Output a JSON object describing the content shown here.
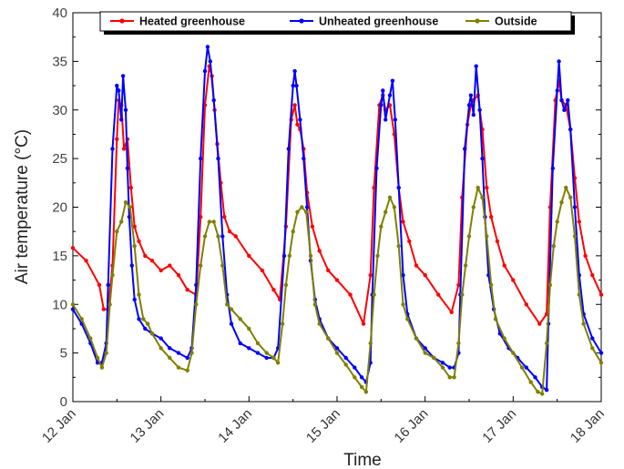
{
  "chart_data": {
    "type": "line",
    "xlabel": "Time",
    "ylabel": "Air temperature (°C)",
    "ylim": [
      0,
      40
    ],
    "yticks": [
      0,
      5,
      10,
      15,
      20,
      25,
      30,
      35,
      40
    ],
    "xlim": [
      0,
      6
    ],
    "xtick_values": [
      0,
      1,
      2,
      3,
      4,
      5,
      6
    ],
    "xtick_labels": [
      "12 Jan",
      "13 Jan",
      "14 Jan",
      "15 Jan",
      "16 Jan",
      "17 Jan",
      "18 Jan"
    ],
    "x_unit": "days since 12 Jan 00:00",
    "legend_position": "top",
    "series": [
      {
        "name": "Heated greenhouse",
        "color": "#ff0000",
        "x": [
          0,
          0.15,
          0.3,
          0.35,
          0.4,
          0.45,
          0.5,
          0.52,
          0.55,
          0.58,
          0.62,
          0.66,
          0.7,
          0.75,
          0.82,
          0.9,
          1.0,
          1.1,
          1.2,
          1.3,
          1.4,
          1.45,
          1.5,
          1.55,
          1.58,
          1.61,
          1.64,
          1.68,
          1.72,
          1.78,
          1.85,
          2.0,
          2.15,
          2.28,
          2.35,
          2.42,
          2.48,
          2.52,
          2.55,
          2.58,
          2.62,
          2.66,
          2.72,
          2.8,
          2.9,
          3.0,
          3.15,
          3.3,
          3.38,
          3.42,
          3.48,
          3.52,
          3.55,
          3.6,
          3.65,
          3.7,
          3.75,
          3.82,
          3.9,
          4.0,
          4.15,
          4.3,
          4.38,
          4.42,
          4.48,
          4.52,
          4.55,
          4.6,
          4.65,
          4.7,
          4.75,
          4.82,
          4.9,
          5.0,
          5.15,
          5.3,
          5.38,
          5.42,
          5.48,
          5.52,
          5.55,
          5.6,
          5.65,
          5.7,
          5.75,
          5.82,
          5.9,
          6.0
        ],
        "values": [
          15.8,
          14.5,
          12.0,
          9.5,
          9.5,
          14.0,
          27.0,
          31.0,
          30.5,
          26.0,
          27.0,
          22.0,
          18.0,
          16.5,
          15.0,
          14.5,
          13.5,
          14.0,
          13.0,
          11.5,
          11.0,
          19.0,
          30.5,
          34.5,
          33.5,
          30.0,
          26.5,
          22.5,
          19.0,
          17.5,
          17.0,
          15.0,
          13.5,
          11.5,
          10.5,
          18.0,
          29.0,
          30.5,
          28.5,
          28.0,
          26.0,
          21.5,
          18.0,
          15.5,
          13.5,
          12.5,
          11.0,
          8.0,
          13.0,
          22.0,
          30.5,
          31.5,
          30.0,
          30.5,
          27.5,
          22.0,
          18.5,
          16.5,
          14.0,
          13.0,
          11.0,
          9.2,
          12.0,
          21.0,
          28.5,
          30.5,
          31.0,
          31.5,
          28.0,
          22.0,
          19.0,
          16.5,
          14.0,
          12.5,
          10.0,
          8.0,
          9.0,
          20.0,
          31.0,
          33.0,
          31.0,
          30.5,
          28.0,
          23.0,
          18.5,
          15.0,
          13.0,
          11.0
        ]
      },
      {
        "name": "Unheated greenhouse",
        "color": "#0000ff",
        "x": [
          0,
          0.1,
          0.2,
          0.28,
          0.33,
          0.38,
          0.4,
          0.45,
          0.5,
          0.52,
          0.55,
          0.57,
          0.6,
          0.62,
          0.64,
          0.67,
          0.7,
          0.75,
          0.82,
          0.9,
          1.0,
          1.1,
          1.2,
          1.3,
          1.35,
          1.4,
          1.45,
          1.5,
          1.53,
          1.56,
          1.6,
          1.65,
          1.7,
          1.75,
          1.8,
          1.9,
          2.0,
          2.1,
          2.2,
          2.28,
          2.33,
          2.4,
          2.45,
          2.5,
          2.52,
          2.54,
          2.58,
          2.62,
          2.66,
          2.7,
          2.75,
          2.8,
          2.9,
          3.0,
          3.1,
          3.2,
          3.28,
          3.33,
          3.38,
          3.4,
          3.45,
          3.5,
          3.52,
          3.55,
          3.6,
          3.63,
          3.66,
          3.7,
          3.75,
          3.8,
          3.9,
          4.0,
          4.1,
          4.2,
          4.28,
          4.33,
          4.38,
          4.4,
          4.45,
          4.5,
          4.52,
          4.55,
          4.58,
          4.62,
          4.65,
          4.68,
          4.72,
          4.78,
          4.85,
          4.95,
          5.05,
          5.15,
          5.25,
          5.33,
          5.38,
          5.4,
          5.45,
          5.5,
          5.52,
          5.55,
          5.58,
          5.62,
          5.65,
          5.7,
          5.75,
          5.8,
          5.9,
          6.0
        ],
        "values": [
          9.5,
          8.0,
          6.0,
          4.0,
          4.0,
          6.0,
          12.0,
          26.0,
          32.5,
          32.0,
          29.0,
          33.5,
          30.0,
          24.0,
          19.0,
          14.0,
          10.5,
          8.5,
          7.5,
          7.0,
          6.5,
          5.5,
          5.0,
          4.5,
          5.5,
          12.0,
          25.0,
          34.0,
          36.5,
          35.0,
          31.0,
          25.0,
          17.0,
          11.0,
          8.0,
          6.0,
          5.5,
          5.0,
          4.5,
          4.5,
          5.5,
          15.0,
          26.0,
          32.5,
          34.0,
          32.5,
          29.0,
          25.0,
          20.0,
          14.5,
          10.5,
          8.5,
          6.5,
          5.5,
          4.5,
          3.5,
          2.5,
          2.0,
          4.0,
          11.0,
          24.0,
          30.5,
          32.0,
          29.0,
          31.5,
          33.0,
          29.0,
          22.0,
          13.0,
          9.0,
          6.5,
          5.5,
          4.5,
          4.0,
          3.5,
          3.5,
          5.0,
          11.0,
          26.0,
          30.5,
          31.5,
          29.5,
          34.5,
          30.0,
          25.0,
          19.0,
          13.0,
          9.5,
          7.0,
          5.5,
          4.5,
          3.5,
          2.5,
          1.5,
          1.2,
          8.0,
          24.0,
          32.0,
          35.0,
          31.0,
          30.0,
          31.0,
          28.0,
          20.0,
          13.0,
          9.0,
          6.5,
          5.0
        ]
      },
      {
        "name": "Outside",
        "color": "#808000",
        "x": [
          0,
          0.1,
          0.2,
          0.28,
          0.33,
          0.38,
          0.42,
          0.45,
          0.5,
          0.55,
          0.6,
          0.65,
          0.7,
          0.75,
          0.8,
          0.85,
          0.9,
          1.0,
          1.1,
          1.2,
          1.3,
          1.35,
          1.4,
          1.45,
          1.5,
          1.55,
          1.6,
          1.65,
          1.7,
          1.75,
          1.8,
          1.9,
          2.0,
          2.1,
          2.2,
          2.28,
          2.33,
          2.38,
          2.42,
          2.46,
          2.5,
          2.55,
          2.6,
          2.65,
          2.7,
          2.75,
          2.8,
          2.9,
          3.0,
          3.1,
          3.2,
          3.28,
          3.33,
          3.38,
          3.42,
          3.46,
          3.5,
          3.55,
          3.6,
          3.65,
          3.7,
          3.75,
          3.8,
          3.9,
          4.0,
          4.1,
          4.2,
          4.28,
          4.33,
          4.38,
          4.42,
          4.46,
          4.5,
          4.55,
          4.6,
          4.65,
          4.7,
          4.75,
          4.8,
          4.9,
          5.0,
          5.1,
          5.2,
          5.28,
          5.33,
          5.38,
          5.42,
          5.46,
          5.5,
          5.55,
          5.6,
          5.65,
          5.7,
          5.75,
          5.8,
          5.9,
          6.0
        ],
        "values": [
          10.0,
          8.5,
          6.5,
          4.5,
          3.5,
          5.0,
          10.0,
          13.0,
          17.5,
          18.5,
          20.5,
          20.0,
          16.0,
          11.0,
          8.5,
          8.0,
          7.0,
          5.5,
          4.5,
          3.5,
          3.2,
          5.0,
          10.0,
          14.0,
          17.0,
          18.5,
          18.5,
          17.0,
          14.0,
          10.0,
          9.5,
          8.5,
          7.5,
          6.0,
          5.0,
          4.5,
          4.0,
          8.0,
          12.0,
          15.0,
          17.5,
          19.5,
          20.0,
          19.5,
          15.0,
          10.0,
          8.0,
          6.5,
          5.0,
          3.8,
          2.5,
          1.5,
          1.0,
          6.0,
          11.0,
          15.0,
          18.0,
          19.5,
          21.0,
          20.0,
          16.0,
          10.0,
          8.5,
          6.5,
          5.0,
          4.5,
          3.5,
          2.5,
          2.5,
          6.0,
          11.0,
          14.0,
          17.0,
          20.0,
          22.0,
          21.0,
          17.0,
          12.0,
          8.5,
          6.5,
          5.0,
          3.5,
          2.0,
          1.0,
          0.8,
          6.0,
          12.0,
          16.0,
          18.5,
          20.5,
          22.0,
          21.0,
          17.0,
          11.0,
          8.0,
          5.5,
          4.0
        ]
      }
    ]
  }
}
